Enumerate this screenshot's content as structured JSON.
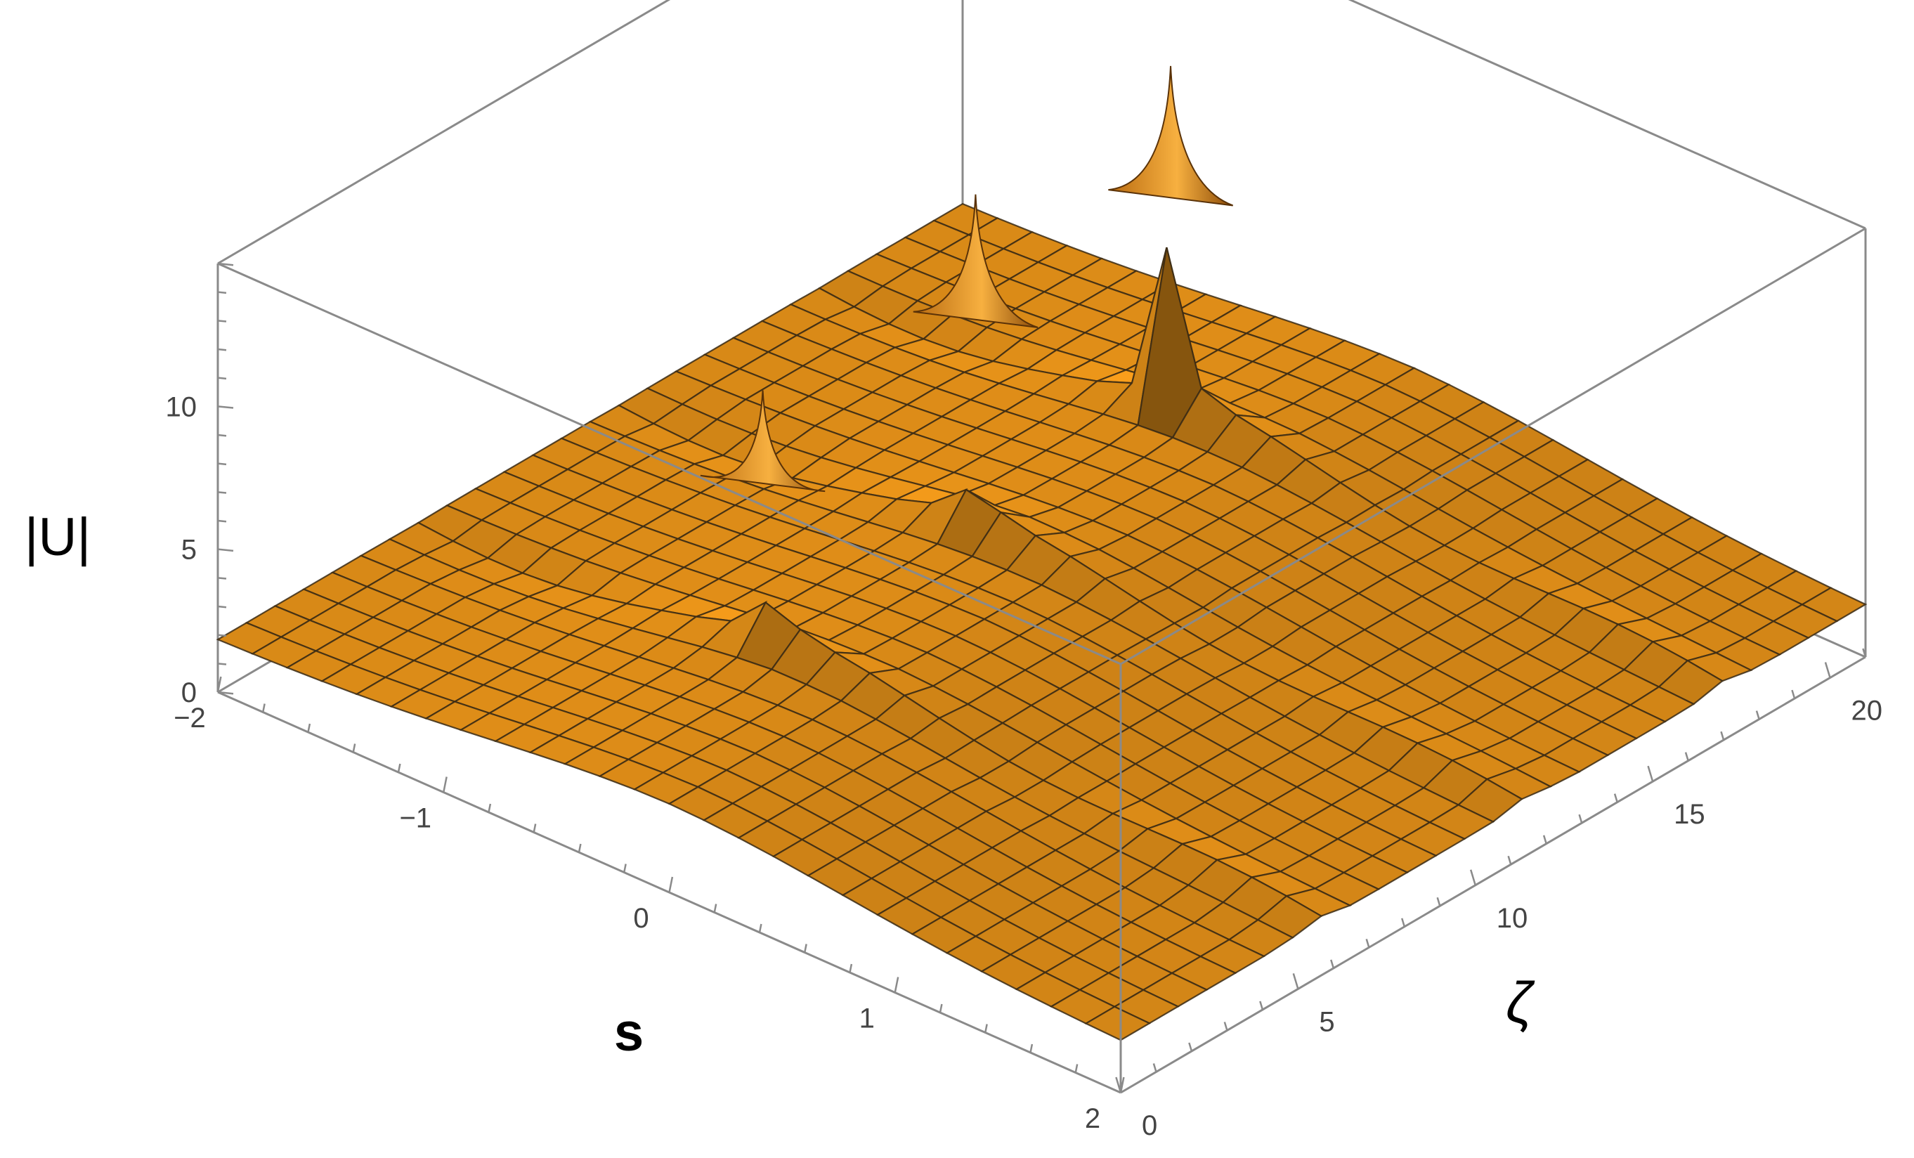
{
  "chart_data": {
    "type": "surface3d",
    "title": "",
    "xlabel": "s",
    "ylabel": "ζ",
    "zlabel": "|U|",
    "x_range": [
      -2,
      2
    ],
    "y_range": [
      0,
      21
    ],
    "z_range": [
      0,
      15
    ],
    "x_ticks": [
      {
        "v": -2,
        "label": "−2"
      },
      {
        "v": -1,
        "label": "−1"
      },
      {
        "v": 0,
        "label": "0"
      },
      {
        "v": 1,
        "label": "1"
      },
      {
        "v": 2,
        "label": "2"
      }
    ],
    "y_ticks": [
      {
        "v": 0,
        "label": "0"
      },
      {
        "v": 5,
        "label": "5"
      },
      {
        "v": 10,
        "label": "10"
      },
      {
        "v": 15,
        "label": "15"
      },
      {
        "v": 20,
        "label": "20"
      }
    ],
    "z_ticks": [
      {
        "v": 0,
        "label": "0"
      },
      {
        "v": 5,
        "label": "5"
      },
      {
        "v": 10,
        "label": "10"
      }
    ],
    "peaks": [
      {
        "s": -0.45,
        "zeta": 5.5,
        "height": 12.0
      },
      {
        "s": -0.45,
        "zeta": 11.5,
        "height": 14.5
      },
      {
        "s": -0.45,
        "zeta": 17.0,
        "height": 15.0
      }
    ],
    "background_level": 2.0,
    "surface_color": "#f39a1a",
    "mesh_color": "#3a2a14",
    "box_color": "#8a8a8a",
    "grid": false
  }
}
